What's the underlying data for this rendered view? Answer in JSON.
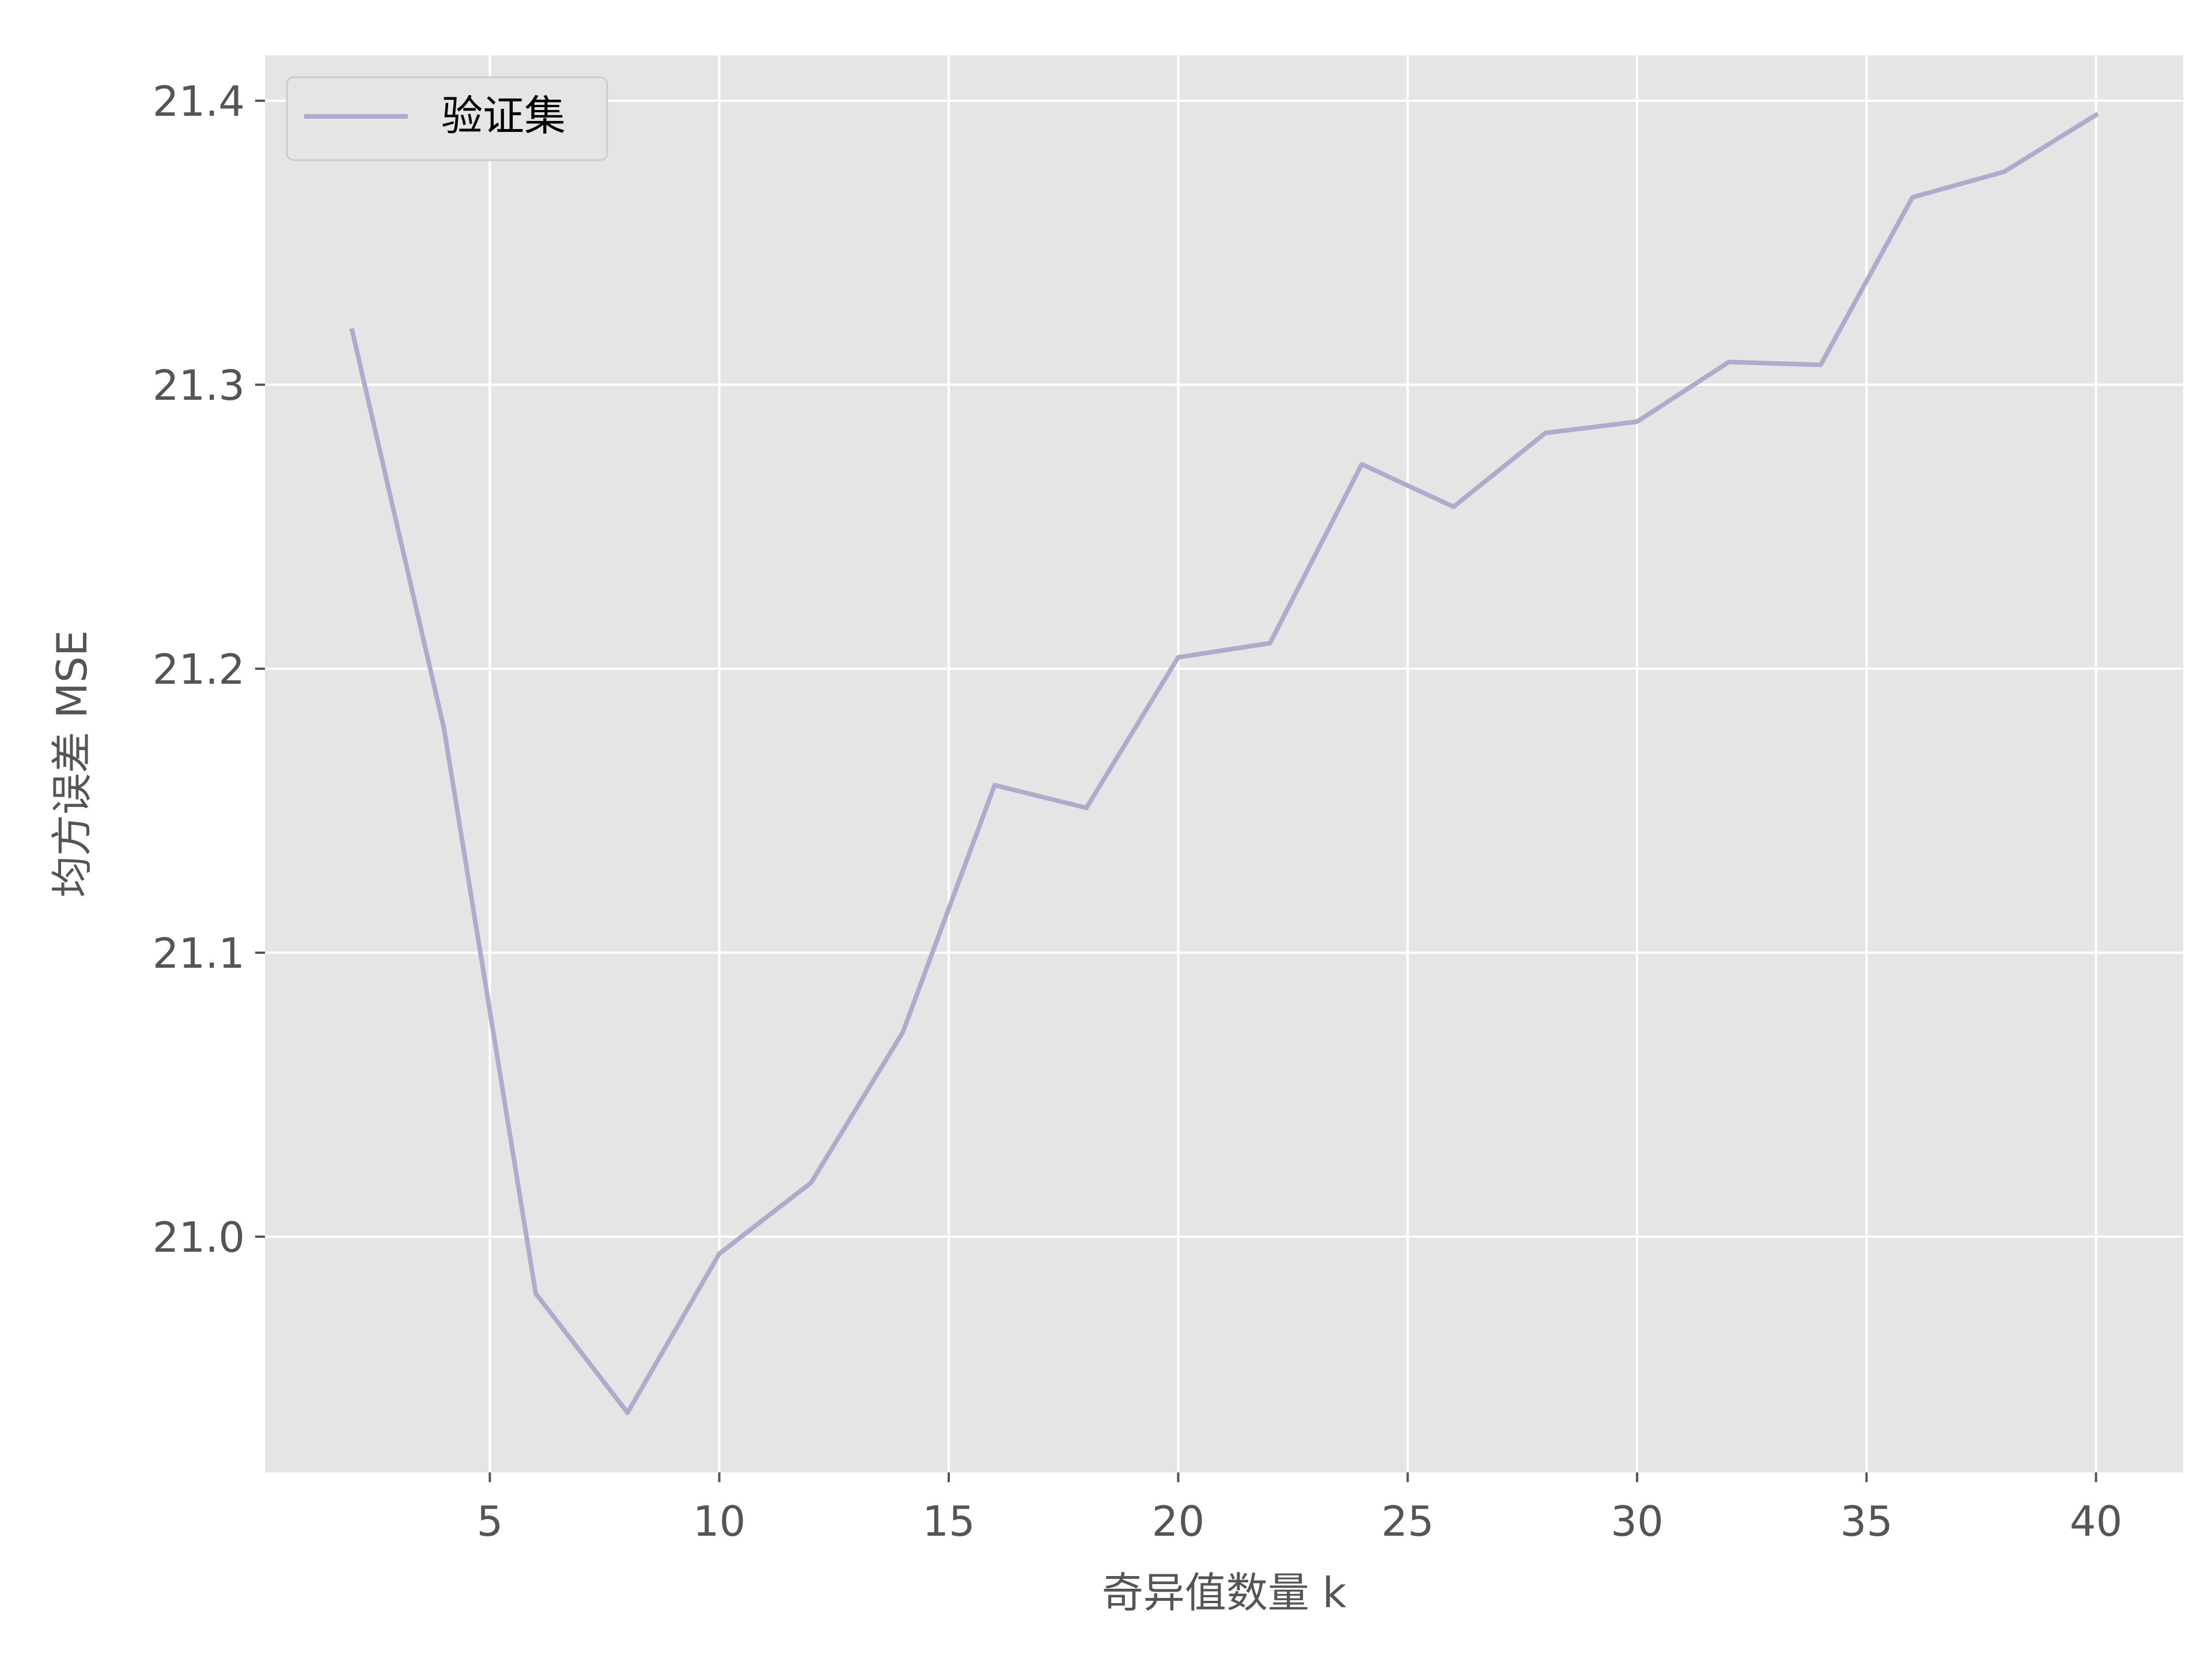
{
  "chart_data": {
    "type": "line",
    "title": "",
    "xlabel": "奇异值数量 k",
    "ylabel": "均方误差 MSE",
    "xlim": [
      0.1,
      41.9
    ],
    "ylim": [
      20.917,
      21.416
    ],
    "xticks": [
      5,
      10,
      15,
      20,
      25,
      30,
      35,
      40
    ],
    "yticks": [
      21.0,
      21.1,
      21.2,
      21.3,
      21.4
    ],
    "ytick_labels": [
      "21.0",
      "21.1",
      "21.2",
      "21.3",
      "21.4"
    ],
    "grid": true,
    "legend_position": "top-left",
    "series": [
      {
        "name": "验证集",
        "color": "#b0abcd",
        "x": [
          2,
          4,
          6,
          8,
          10,
          12,
          14,
          16,
          18,
          20,
          22,
          24,
          26,
          28,
          30,
          32,
          34,
          36,
          38,
          40
        ],
        "y": [
          21.319,
          21.179,
          20.98,
          20.938,
          20.994,
          21.019,
          21.072,
          21.159,
          21.151,
          21.204,
          21.209,
          21.272,
          21.257,
          21.283,
          21.287,
          21.308,
          21.307,
          21.366,
          21.375,
          21.395
        ]
      }
    ]
  }
}
